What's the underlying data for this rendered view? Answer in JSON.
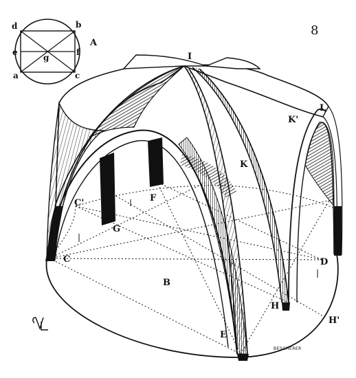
{
  "figure": {
    "number": "8",
    "inset": {
      "label": "A",
      "points": [
        "d",
        "b",
        "e",
        "g",
        "f",
        "a",
        "c"
      ]
    },
    "labels": {
      "top_keystone": "I",
      "far_corner": "L",
      "rib_upper": "K'",
      "rib_lower": "K",
      "pier_far_left": "C'",
      "pier_back": "F",
      "pier_left_base": "G",
      "corner_left": "C",
      "corner_right": "D",
      "floor": "B",
      "pier_front_right": "H",
      "pier_outer_right": "H'",
      "corner_front": "E"
    },
    "engraver_signature": "BESCHERER",
    "monogram": "VL"
  }
}
